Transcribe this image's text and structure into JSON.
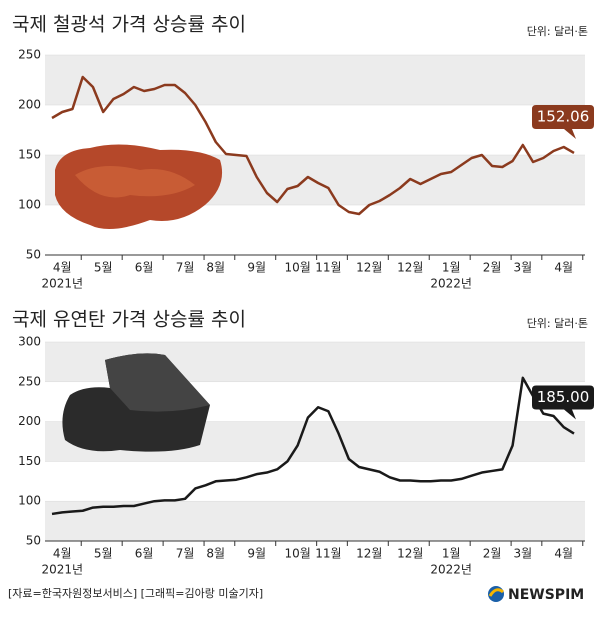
{
  "chart_data": [
    {
      "type": "line",
      "title": "국제 철광석 가격 상승률 추이",
      "unit": "단위: 달러·톤",
      "color": "#8b3a1e",
      "categories": [
        null,
        "4월",
        null,
        null,
        null,
        "5월",
        null,
        null,
        null,
        "6월",
        null,
        null,
        null,
        "7월",
        null,
        null,
        "8월",
        null,
        null,
        null,
        "9월",
        null,
        null,
        null,
        "10월",
        null,
        null,
        "11월",
        null,
        null,
        null,
        "12월",
        null,
        null,
        null,
        "12월",
        null,
        null,
        null,
        "1월",
        null,
        null,
        null,
        "2월",
        null,
        null,
        "3월",
        null,
        null,
        null,
        "4월",
        null
      ],
      "year_labels": [
        null,
        "2021년",
        null,
        null,
        null,
        null,
        null,
        null,
        null,
        null,
        null,
        null,
        null,
        null,
        null,
        null,
        null,
        null,
        null,
        null,
        null,
        null,
        null,
        null,
        null,
        null,
        null,
        null,
        null,
        null,
        null,
        null,
        null,
        null,
        null,
        null,
        null,
        null,
        null,
        "2022년",
        null,
        null,
        null,
        null,
        null,
        null,
        null,
        null,
        null,
        null,
        null,
        null
      ],
      "values": [
        187,
        193,
        196,
        228,
        218,
        193,
        206,
        211,
        218,
        214,
        216,
        220,
        220,
        212,
        200,
        183,
        163,
        151,
        150,
        149,
        128,
        112,
        103,
        116,
        119,
        128,
        122,
        117,
        100,
        93,
        91,
        100,
        104,
        110,
        117,
        126,
        121,
        126,
        131,
        133,
        140,
        147,
        150,
        139,
        138,
        144,
        160,
        143,
        147,
        154,
        158,
        152.06
      ],
      "value_labels": [
        null,
        null,
        null,
        null,
        null,
        null,
        null,
        null,
        null,
        null,
        null,
        null,
        null,
        null,
        null,
        null,
        null,
        null,
        null,
        null,
        null,
        null,
        null,
        null,
        null,
        null,
        null,
        null,
        null,
        null,
        null,
        null,
        null,
        null,
        null,
        null,
        null,
        null,
        null,
        null,
        null,
        null,
        null,
        null,
        null,
        null,
        null,
        null,
        null,
        null,
        null,
        "152.06"
      ],
      "ylim": [
        50,
        250
      ],
      "yticks": [
        50,
        100,
        150,
        200,
        250
      ],
      "grid": true
    },
    {
      "type": "line",
      "title": "국제 유연탄 가격 상승률 추이",
      "unit": "단위: 달러·톤",
      "color": "#1a1a1a",
      "categories": [
        null,
        "4월",
        null,
        null,
        null,
        "5월",
        null,
        null,
        null,
        "6월",
        null,
        null,
        null,
        "7월",
        null,
        null,
        "8월",
        null,
        null,
        null,
        "9월",
        null,
        null,
        null,
        "10월",
        null,
        null,
        "11월",
        null,
        null,
        null,
        "12월",
        null,
        null,
        null,
        "12월",
        null,
        null,
        null,
        "1월",
        null,
        null,
        null,
        "2월",
        null,
        null,
        "3월",
        null,
        null,
        null,
        "4월",
        null
      ],
      "year_labels": [
        null,
        "2021년",
        null,
        null,
        null,
        null,
        null,
        null,
        null,
        null,
        null,
        null,
        null,
        null,
        null,
        null,
        null,
        null,
        null,
        null,
        null,
        null,
        null,
        null,
        null,
        null,
        null,
        null,
        null,
        null,
        null,
        null,
        null,
        null,
        null,
        null,
        null,
        null,
        null,
        "2022년",
        null,
        null,
        null,
        null,
        null,
        null,
        null,
        null,
        null,
        null,
        null,
        null
      ],
      "values": [
        84,
        86,
        87,
        88,
        92,
        93,
        93,
        94,
        94,
        97,
        100,
        101,
        101,
        103,
        116,
        120,
        125,
        126,
        127,
        130,
        134,
        136,
        140,
        150,
        170,
        205,
        218,
        213,
        185,
        153,
        143,
        140,
        137,
        130,
        126,
        126,
        125,
        125,
        126,
        126,
        128,
        132,
        136,
        138,
        140,
        170,
        255,
        232,
        210,
        207,
        193,
        185.0
      ],
      "value_labels": [
        null,
        null,
        null,
        null,
        null,
        null,
        null,
        null,
        null,
        null,
        null,
        null,
        null,
        null,
        null,
        null,
        null,
        null,
        null,
        null,
        null,
        null,
        null,
        null,
        null,
        null,
        null,
        null,
        null,
        null,
        null,
        null,
        null,
        null,
        null,
        null,
        null,
        null,
        null,
        null,
        null,
        null,
        null,
        null,
        null,
        null,
        null,
        null,
        null,
        null,
        null,
        "185.00"
      ],
      "ylim": [
        50,
        300
      ],
      "yticks": [
        50,
        100,
        150,
        200,
        250,
        300
      ],
      "grid": true
    }
  ],
  "source": "[자료=한국자원정보서비스] [그래픽=김아랑 미술기자]",
  "logo": "NEWSPIM"
}
